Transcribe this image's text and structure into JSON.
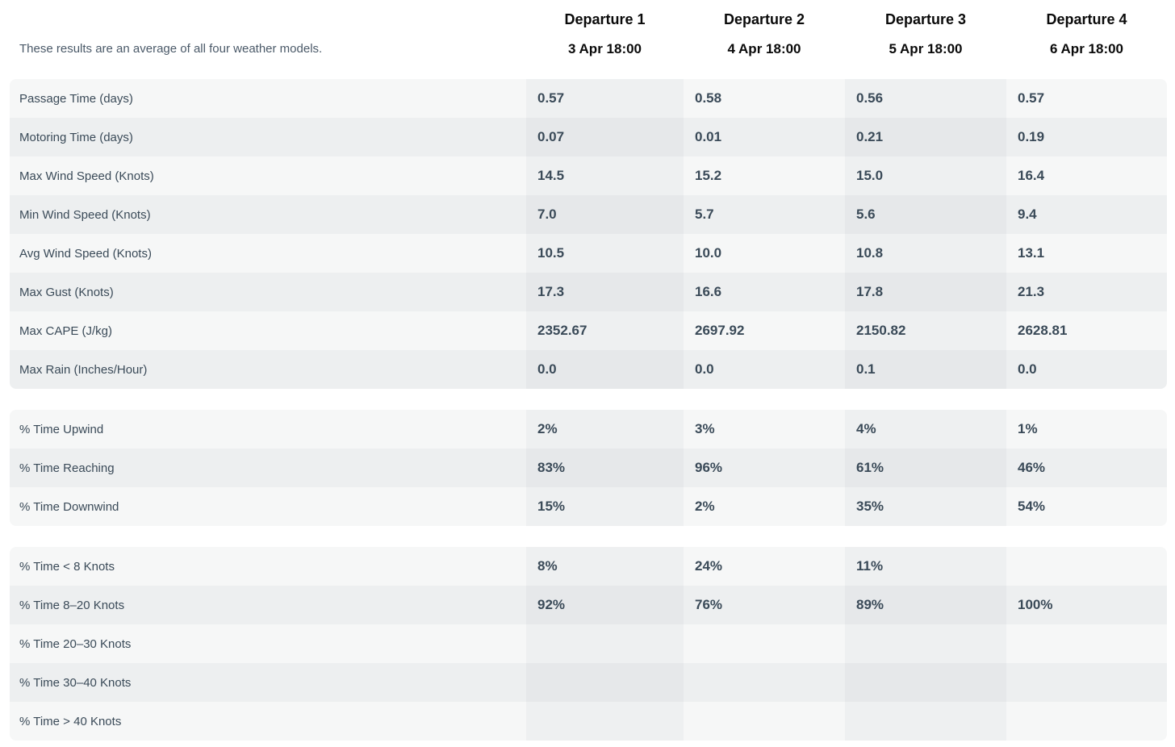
{
  "note": "These results are an average of all four weather models.",
  "departures": [
    {
      "title": "Departure 1",
      "date": "3 Apr 18:00"
    },
    {
      "title": "Departure 2",
      "date": "4 Apr 18:00"
    },
    {
      "title": "Departure 3",
      "date": "5 Apr 18:00"
    },
    {
      "title": "Departure 4",
      "date": "6 Apr 18:00"
    }
  ],
  "groups": [
    {
      "rows": [
        {
          "label": "Passage Time (days)",
          "values": [
            "0.57",
            "0.58",
            "0.56",
            "0.57"
          ]
        },
        {
          "label": "Motoring Time (days)",
          "values": [
            "0.07",
            "0.01",
            "0.21",
            "0.19"
          ]
        },
        {
          "label": "Max Wind Speed (Knots)",
          "values": [
            "14.5",
            "15.2",
            "15.0",
            "16.4"
          ]
        },
        {
          "label": "Min Wind Speed (Knots)",
          "values": [
            "7.0",
            "5.7",
            "5.6",
            "9.4"
          ]
        },
        {
          "label": "Avg Wind Speed (Knots)",
          "values": [
            "10.5",
            "10.0",
            "10.8",
            "13.1"
          ]
        },
        {
          "label": "Max Gust (Knots)",
          "values": [
            "17.3",
            "16.6",
            "17.8",
            "21.3"
          ]
        },
        {
          "label": "Max CAPE (J/kg)",
          "values": [
            "2352.67",
            "2697.92",
            "2150.82",
            "2628.81"
          ]
        },
        {
          "label": "Max Rain (Inches/Hour)",
          "values": [
            "0.0",
            "0.0",
            "0.1",
            "0.0"
          ]
        }
      ]
    },
    {
      "rows": [
        {
          "label": "% Time Upwind",
          "values": [
            "2%",
            "3%",
            "4%",
            "1%"
          ]
        },
        {
          "label": "% Time Reaching",
          "values": [
            "83%",
            "96%",
            "61%",
            "46%"
          ]
        },
        {
          "label": "% Time Downwind",
          "values": [
            "15%",
            "2%",
            "35%",
            "54%"
          ]
        }
      ]
    },
    {
      "rows": [
        {
          "label": "% Time < 8 Knots",
          "values": [
            "8%",
            "24%",
            "11%",
            ""
          ]
        },
        {
          "label": "% Time 8–20 Knots",
          "values": [
            "92%",
            "76%",
            "89%",
            "100%"
          ]
        },
        {
          "label": "% Time 20–30 Knots",
          "values": [
            "",
            "",
            "",
            ""
          ]
        },
        {
          "label": "% Time 30–40 Knots",
          "values": [
            "",
            "",
            "",
            ""
          ]
        },
        {
          "label": "% Time > 40 Knots",
          "values": [
            "",
            "",
            "",
            ""
          ]
        }
      ]
    }
  ]
}
